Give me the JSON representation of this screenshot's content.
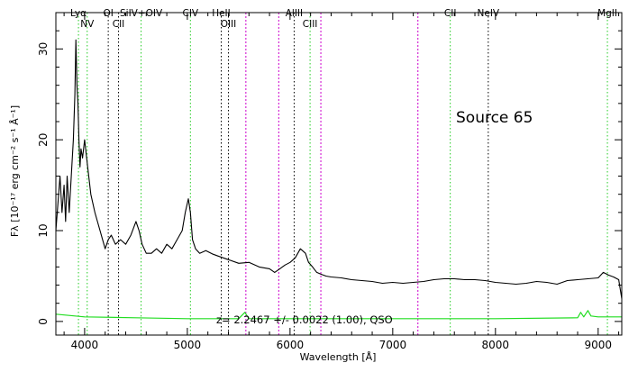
{
  "chart_data": {
    "type": "line",
    "title": "",
    "annotation": "Source 65",
    "fit_text": "z= 2.2467 +/- 0.0022 (1.00), QSO",
    "xlabel": "Wavelength [Å]",
    "ylabel": "Fλ [10⁻¹⁷ erg cm⁻² s⁻¹ Å⁻¹]",
    "xlim": [
      3720,
      9230
    ],
    "ylim": [
      -1.5,
      34
    ],
    "x_ticks": [
      4000,
      5000,
      6000,
      7000,
      8000,
      9000
    ],
    "y_ticks": [
      0,
      10,
      20,
      30
    ],
    "x_tick_labels": [
      "4000",
      "5000",
      "6000",
      "7000",
      "8000",
      "9000"
    ],
    "y_tick_labels": [
      "0",
      "10",
      "20",
      "30"
    ],
    "grid": false,
    "colors": {
      "spectrum": "#000000",
      "error": "#22dd22",
      "emission_marker": "#22cc22",
      "absorption_marker": "#000000",
      "sky_marker": "#cc00cc"
    },
    "series": [
      {
        "role": "spectrum",
        "x": [
          3720,
          3740,
          3760,
          3780,
          3800,
          3815,
          3830,
          3850,
          3870,
          3890,
          3905,
          3915,
          3925,
          3935,
          3945,
          3955,
          3965,
          3980,
          4000,
          4030,
          4060,
          4100,
          4150,
          4200,
          4230,
          4260,
          4300,
          4350,
          4400,
          4450,
          4500,
          4530,
          4560,
          4600,
          4650,
          4700,
          4750,
          4800,
          4850,
          4900,
          4950,
          4980,
          5010,
          5030,
          5050,
          5080,
          5120,
          5180,
          5250,
          5300,
          5400,
          5500,
          5600,
          5700,
          5800,
          5850,
          5900,
          5950,
          6000,
          6050,
          6100,
          6150,
          6180,
          6220,
          6260,
          6300,
          6350,
          6400,
          6500,
          6600,
          6700,
          6800,
          6900,
          7000,
          7100,
          7200,
          7300,
          7400,
          7500,
          7600,
          7700,
          7800,
          7900,
          8000,
          8100,
          8200,
          8300,
          8400,
          8500,
          8600,
          8700,
          8800,
          8900,
          9000,
          9050,
          9100,
          9150,
          9200,
          9230
        ],
        "y": [
          10,
          13,
          16,
          12,
          15,
          11,
          16,
          12,
          16,
          20,
          25,
          31,
          26,
          24,
          20,
          17,
          19,
          18,
          20,
          17,
          14,
          12,
          10,
          8,
          9,
          9.5,
          8.5,
          9,
          8.5,
          9.5,
          11,
          10,
          8.5,
          7.5,
          7.5,
          8,
          7.5,
          8.5,
          8,
          9,
          10,
          12,
          13.5,
          12,
          9,
          8,
          7.5,
          7.8,
          7.4,
          7.2,
          6.8,
          6.4,
          6.5,
          6,
          5.8,
          5.4,
          5.8,
          6.2,
          6.5,
          7,
          8,
          7.5,
          6.5,
          6,
          5.4,
          5.2,
          5,
          4.9,
          4.8,
          4.6,
          4.5,
          4.4,
          4.2,
          4.3,
          4.2,
          4.3,
          4.4,
          4.6,
          4.7,
          4.7,
          4.6,
          4.6,
          4.5,
          4.3,
          4.2,
          4.1,
          4.2,
          4.4,
          4.3,
          4.1,
          4.5,
          4.6,
          4.7,
          4.8,
          5.4,
          5.1,
          4.9,
          4.6,
          2.5
        ]
      },
      {
        "role": "error",
        "x": [
          3720,
          4000,
          4500,
          5000,
          5500,
          5560,
          5600,
          6000,
          7000,
          8000,
          8800,
          8830,
          8860,
          8900,
          8930,
          9000,
          9230
        ],
        "y": [
          0.8,
          0.5,
          0.4,
          0.3,
          0.3,
          1.0,
          0.3,
          0.3,
          0.3,
          0.3,
          0.4,
          1.0,
          0.5,
          1.2,
          0.6,
          0.5,
          0.5
        ]
      }
    ],
    "line_markers": [
      {
        "label": "Lyα",
        "wavelength": 3940,
        "color": "emission"
      },
      {
        "label": "NV",
        "wavelength": 4025,
        "color": "emission"
      },
      {
        "label": "OI",
        "wavelength": 4230,
        "color": "absorption"
      },
      {
        "label": "CII",
        "wavelength": 4330,
        "color": "absorption"
      },
      {
        "label": "SiIV+OIV",
        "wavelength": 4550,
        "color": "emission"
      },
      {
        "label": "CIV",
        "wavelength": 5030,
        "color": "emission"
      },
      {
        "label": "HeII",
        "wavelength": 5330,
        "color": "absorption"
      },
      {
        "label": "OIII",
        "wavelength": 5400,
        "color": "absorption"
      },
      {
        "label": "",
        "wavelength": 5570,
        "color": "sky"
      },
      {
        "label": "",
        "wavelength": 5890,
        "color": "sky"
      },
      {
        "label": "AlIII",
        "wavelength": 6040,
        "color": "absorption"
      },
      {
        "label": "CIII",
        "wavelength": 6195,
        "color": "emission"
      },
      {
        "label": "",
        "wavelength": 6300,
        "color": "sky"
      },
      {
        "label": "",
        "wavelength": 7245,
        "color": "sky"
      },
      {
        "label": "CII",
        "wavelength": 7560,
        "color": "emission"
      },
      {
        "label": "NeIV",
        "wavelength": 7930,
        "color": "absorption"
      },
      {
        "label": "MgII",
        "wavelength": 9090,
        "color": "emission"
      }
    ]
  }
}
